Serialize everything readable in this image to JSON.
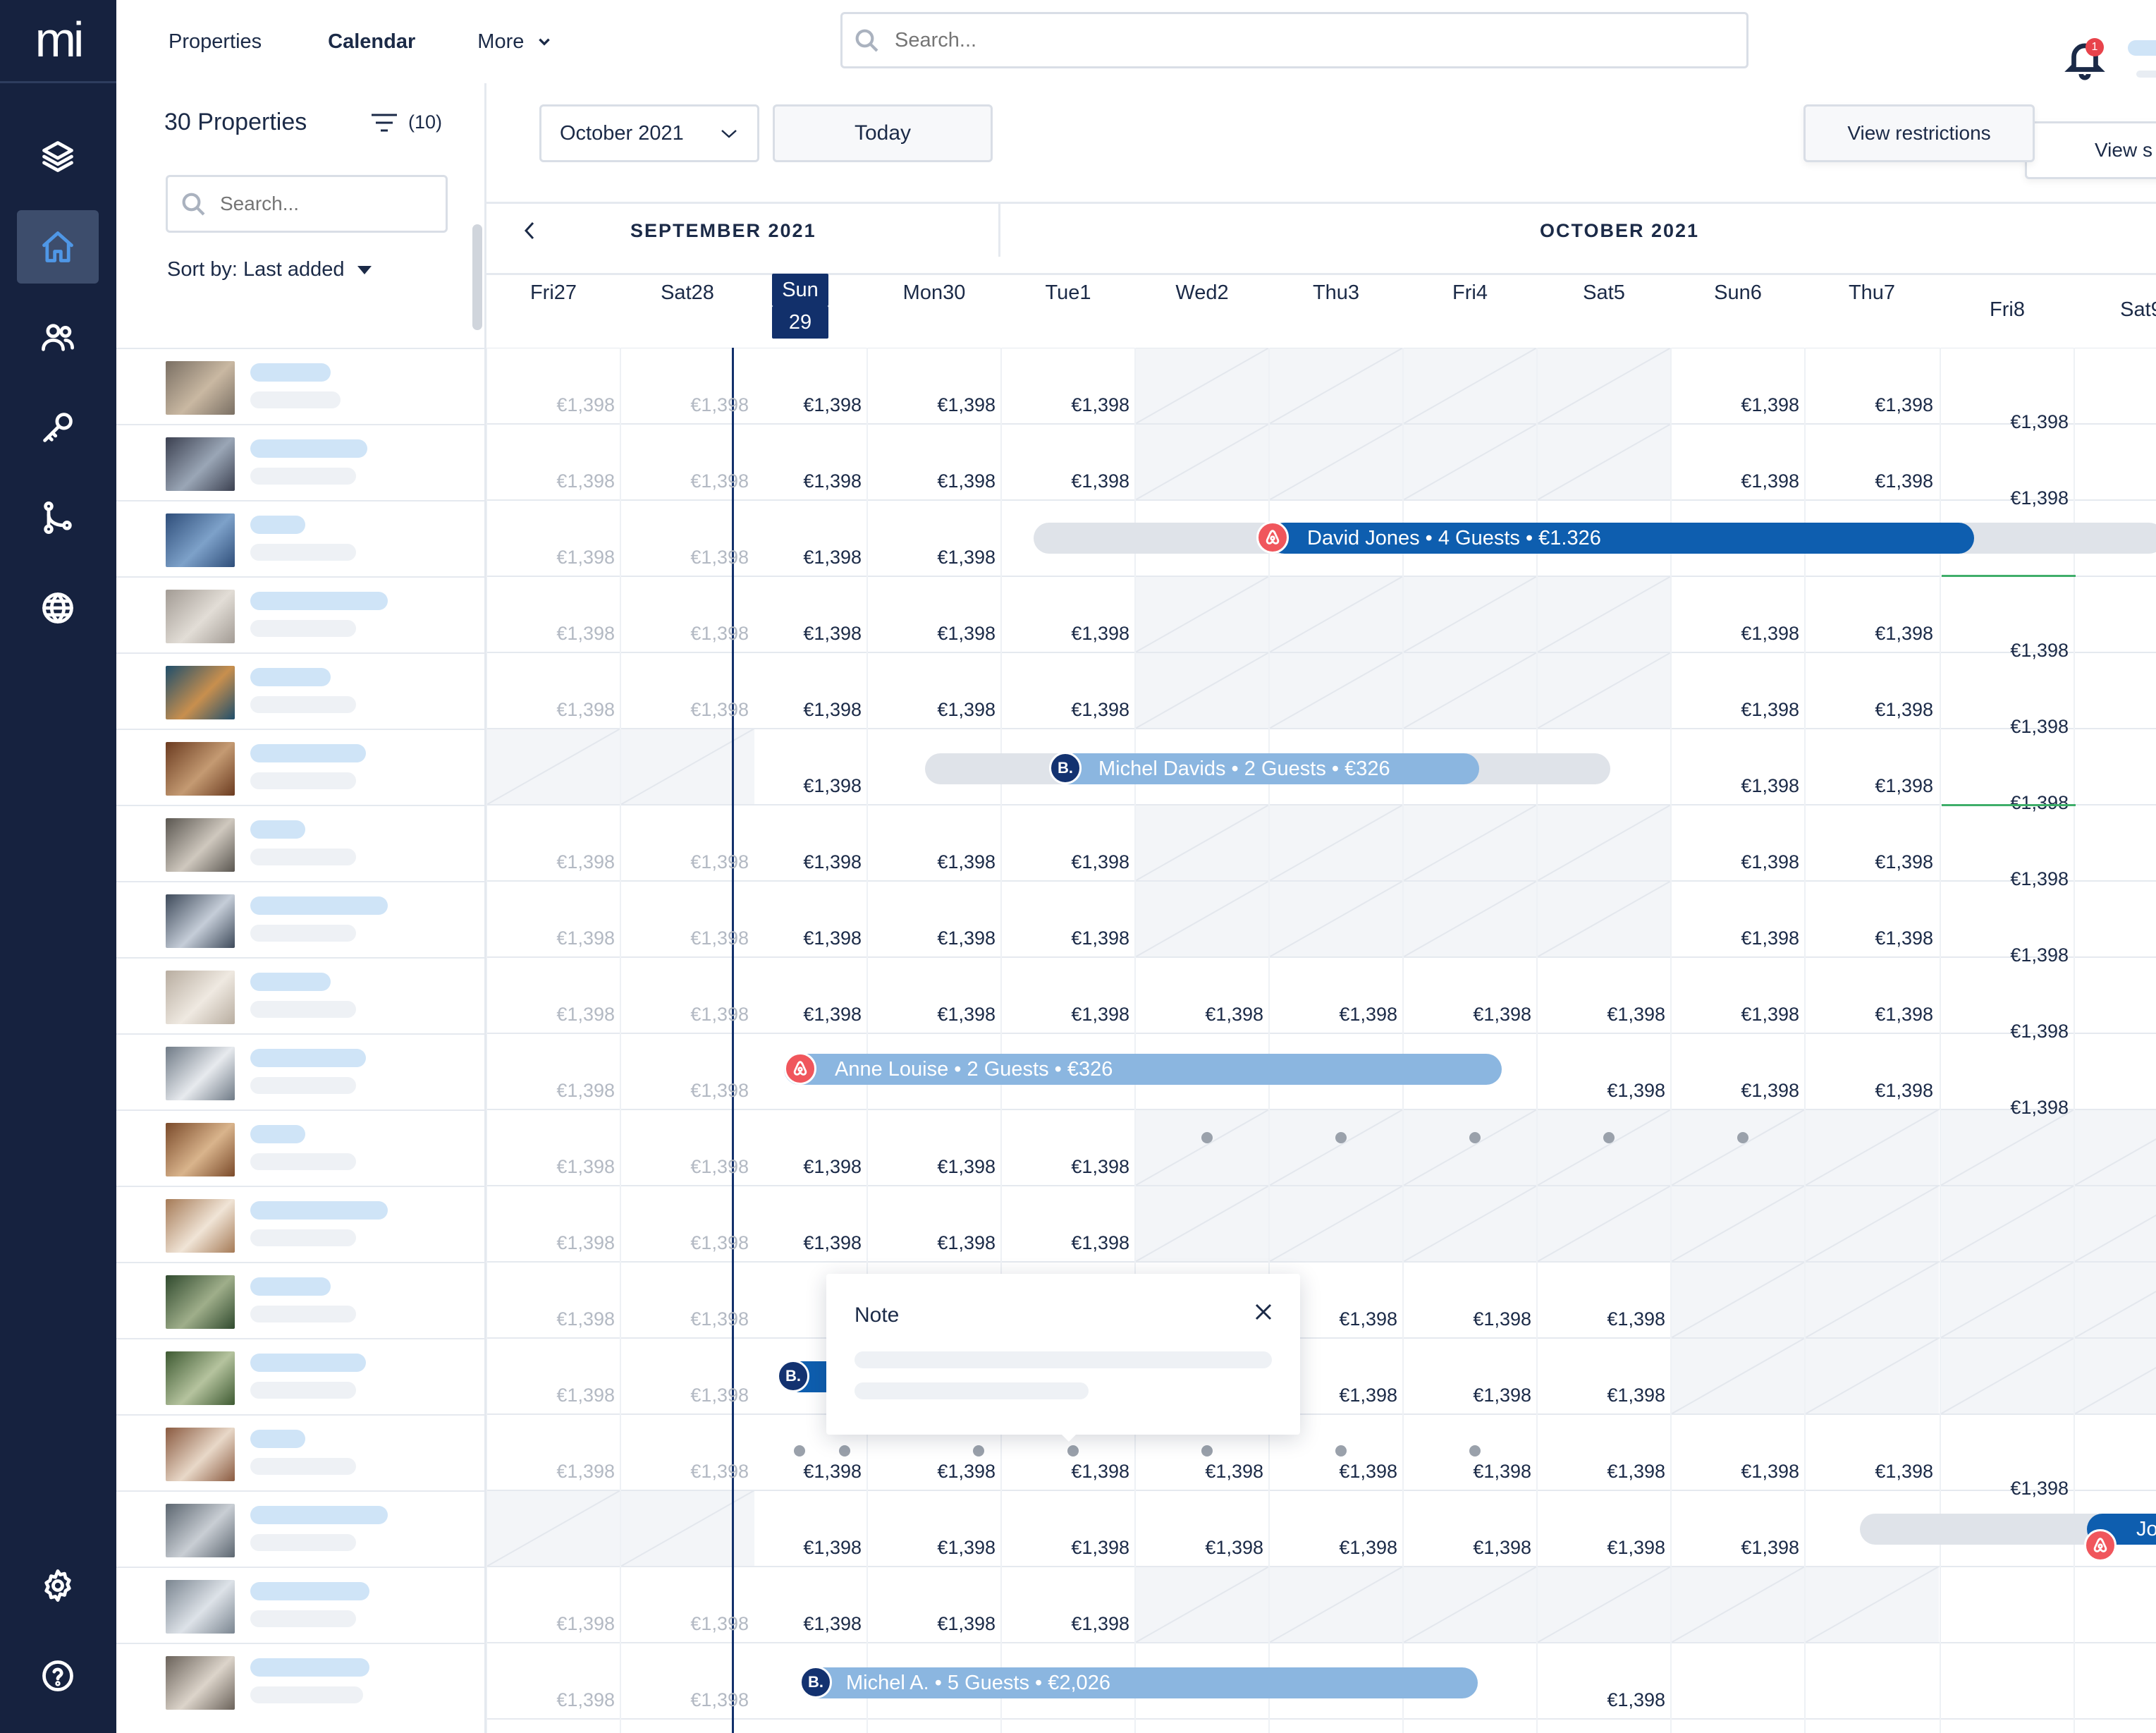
{
  "app": {
    "logo": "mi"
  },
  "sidebar": {
    "items": [
      {
        "icon": "layers-icon"
      },
      {
        "icon": "home-icon",
        "active": true
      },
      {
        "icon": "users-icon"
      },
      {
        "icon": "key-icon"
      },
      {
        "icon": "workflow-icon"
      },
      {
        "icon": "globe-icon"
      },
      {
        "icon": "gear-icon"
      },
      {
        "icon": "help-icon"
      }
    ]
  },
  "topnav": {
    "properties": "Properties",
    "calendar": "Calendar",
    "more": "More"
  },
  "search": {
    "placeholder": "Search..."
  },
  "notifications": {
    "count": "1"
  },
  "properties_panel": {
    "count_label": "30 Properties",
    "filter_count": "(10)",
    "search_placeholder": "Search...",
    "sort_label": "Sort by: Last added"
  },
  "controls": {
    "month": "October 2021",
    "today": "Today",
    "view_restrictions": "View restrictions",
    "view_second": "View s"
  },
  "calendar": {
    "months": {
      "september": "SEPTEMBER 2021",
      "october": "OCTOBER 2021"
    },
    "days": [
      {
        "dow": "Fri",
        "date": "27"
      },
      {
        "dow": "Sat",
        "date": "28"
      },
      {
        "dow": "Sun",
        "date": "29",
        "today": true
      },
      {
        "dow": "Mon",
        "date": "30"
      },
      {
        "dow": "Tue",
        "date": "1"
      },
      {
        "dow": "Wed",
        "date": "2"
      },
      {
        "dow": "Thu",
        "date": "3"
      },
      {
        "dow": "Fri",
        "date": "4"
      },
      {
        "dow": "Sat",
        "date": "5"
      },
      {
        "dow": "Sun",
        "date": "6"
      },
      {
        "dow": "Thu",
        "date": "7"
      },
      {
        "dow": "Fri",
        "date": "8"
      },
      {
        "dow": "Sat",
        "date": "9"
      }
    ],
    "price": "€1,398",
    "bookings": [
      {
        "guest": "David Jones",
        "guests": "4 Guests",
        "amount": "€1.326",
        "source": "airbnb"
      },
      {
        "guest": "Michel  Davids",
        "guests": "2 Guests",
        "amount": "€326",
        "source": "booking"
      },
      {
        "guest": "Anne Louise",
        "guests": "2 Guests",
        "amount": "€326",
        "source": "airbnb"
      },
      {
        "guest": "Michel  A.",
        "guests": "5 Guests",
        "amount": "€2,026",
        "source": "booking"
      },
      {
        "guest": "Jo",
        "source": "airbnb"
      }
    ],
    "note": {
      "title": "Note"
    }
  },
  "colors": {
    "sidebar": "#16223f",
    "accent": "#0e5eaf",
    "today": "#12306b",
    "airbnb": "#f0565c",
    "booking": "#133270"
  }
}
